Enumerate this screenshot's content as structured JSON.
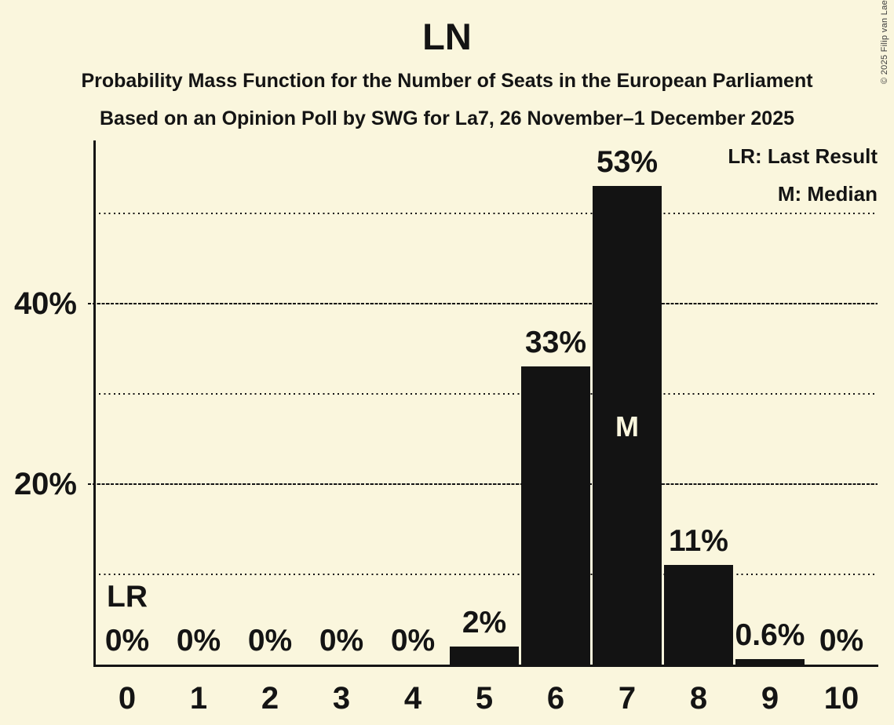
{
  "page": {
    "title": "LN",
    "subtitle1": "Probability Mass Function for the Number of Seats in the European Parliament",
    "subtitle2": "Based on an Opinion Poll by SWG for La7, 26 November–1 December 2025",
    "copyright": "© 2025 Filip van Laenen"
  },
  "legend": {
    "lr": "LR: Last Result",
    "m": "M: Median"
  },
  "colors": {
    "background": "#faf6dd",
    "bar": "#131313",
    "text": "#141414"
  },
  "chart_data": {
    "type": "bar",
    "title": "LN",
    "xlabel": "",
    "ylabel": "",
    "categories": [
      "0",
      "1",
      "2",
      "3",
      "4",
      "5",
      "6",
      "7",
      "8",
      "9",
      "10"
    ],
    "values": [
      0,
      0,
      0,
      0,
      0,
      2,
      33,
      53,
      11,
      0.6,
      0
    ],
    "bar_labels": [
      "0%",
      "0%",
      "0%",
      "0%",
      "0%",
      "2%",
      "33%",
      "53%",
      "11%",
      "0.6%",
      "0%"
    ],
    "ylim": [
      0,
      57.7
    ],
    "grid": true,
    "yticks": [
      {
        "value": 20,
        "label": "20%"
      },
      {
        "value": 40,
        "label": "40%"
      }
    ],
    "gridlines": [
      {
        "value": 10,
        "style": "dotted"
      },
      {
        "value": 20,
        "style": "dashed"
      },
      {
        "value": 30,
        "style": "dotted"
      },
      {
        "value": 40,
        "style": "dashed"
      },
      {
        "value": 50,
        "style": "dotted"
      }
    ],
    "annotations": {
      "last_result": {
        "index": 0,
        "text": "LR"
      },
      "median": {
        "index": 7,
        "text": "M"
      }
    },
    "legend_entries": [
      "LR: Last Result",
      "M: Median"
    ],
    "legend_position": "top-right"
  }
}
